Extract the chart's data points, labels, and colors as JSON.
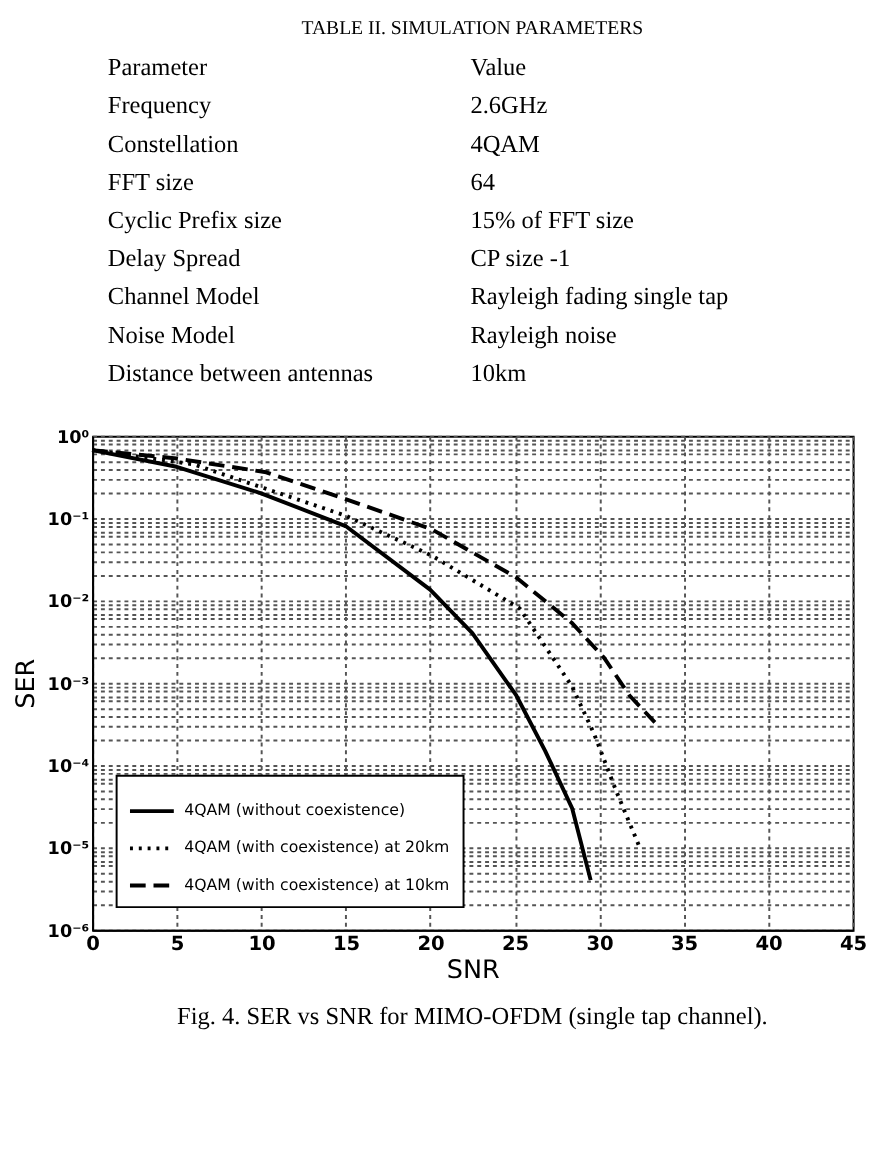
{
  "chart_data": [
    {
      "type": "other",
      "title": "TABLE II. SIMULATION PARAMETERS",
      "annotations": [
        "Parameter",
        "Value",
        "Frequency",
        "2.6GHz",
        "Constellation",
        "4QAM",
        "FFT size",
        "64",
        "Cyclic Prefix size",
        "15% of FFT size",
        "Delay Spread",
        "CP size -1",
        "Channel Model",
        "Rayleigh fading single tap",
        "Noise Model",
        "Rayleigh noise",
        "Distance between antennas",
        "10km"
      ]
    },
    {
      "type": "line",
      "xlabel": "SNR",
      "ylabel": "SER",
      "log": "y",
      "grid": true,
      "legend": "bottom left",
      "marker": "none",
      "xlim": [
        0,
        45
      ],
      "xticks": [
        0,
        5,
        10,
        15,
        20,
        25,
        30,
        35,
        40,
        45
      ],
      "ylim": [
        1e-06,
        1
      ],
      "yticks": [
        {
          "value": 1e-06,
          "label": "10⁻⁶"
        },
        {
          "value": 2e-06,
          "label": null
        },
        {
          "value": 3e-06,
          "label": null
        },
        {
          "value": 4e-06,
          "label": null
        },
        {
          "value": 5e-06,
          "label": null
        },
        {
          "value": 6e-06,
          "label": null
        },
        {
          "value": 7e-06,
          "label": null
        },
        {
          "value": 8e-06,
          "label": null
        },
        {
          "value": 9e-06,
          "label": null
        },
        {
          "value": 1e-05,
          "label": "10⁻⁵"
        },
        {
          "value": 2e-05,
          "label": null
        },
        {
          "value": 3e-05,
          "label": null
        },
        {
          "value": 4e-05,
          "label": null
        },
        {
          "value": 5e-05,
          "label": null
        },
        {
          "value": 6e-05,
          "label": null
        },
        {
          "value": 7e-05,
          "label": null
        },
        {
          "value": 8e-05,
          "label": null
        },
        {
          "value": 9e-05,
          "label": null
        },
        {
          "value": 0.0001,
          "label": "10⁻⁴"
        },
        {
          "value": 0.0002,
          "label": null
        },
        {
          "value": 0.0003,
          "label": null
        },
        {
          "value": 0.0004,
          "label": null
        },
        {
          "value": 0.0005,
          "label": null
        },
        {
          "value": 0.0006,
          "label": null
        },
        {
          "value": 0.0007,
          "label": null
        },
        {
          "value": 0.0008,
          "label": null
        },
        {
          "value": 0.0009,
          "label": null
        },
        {
          "value": 0.001,
          "label": "10⁻³"
        },
        {
          "value": 0.002,
          "label": null
        },
        {
          "value": 0.003,
          "label": null
        },
        {
          "value": 0.004,
          "label": null
        },
        {
          "value": 0.005,
          "label": null
        },
        {
          "value": 0.006,
          "label": null
        },
        {
          "value": 0.007,
          "label": null
        },
        {
          "value": 0.008,
          "label": null
        },
        {
          "value": 0.009,
          "label": null
        },
        {
          "value": 0.01,
          "label": "10⁻²"
        },
        {
          "value": 0.02,
          "label": null
        },
        {
          "value": 0.03,
          "label": null
        },
        {
          "value": 0.04,
          "label": null
        },
        {
          "value": 0.05,
          "label": null
        },
        {
          "value": 0.06,
          "label": null
        },
        {
          "value": 0.07,
          "label": null
        },
        {
          "value": 0.08,
          "label": null
        },
        {
          "value": 0.09,
          "label": null
        },
        {
          "value": 0.1,
          "label": "10⁻¹"
        },
        {
          "value": 0.2,
          "label": null
        },
        {
          "value": 0.3,
          "label": null
        },
        {
          "value": 0.4,
          "label": null
        },
        {
          "value": 0.5,
          "label": null
        },
        {
          "value": 0.6,
          "label": null
        },
        {
          "value": 0.7,
          "label": null
        },
        {
          "value": 0.8,
          "label": null
        },
        {
          "value": 0.9,
          "label": null
        },
        {
          "value": 1,
          "label": "10⁰"
        }
      ],
      "annotations": [
        "Fig. 4. SER vs SNR for MIMO-OFDM (single tap channel)."
      ],
      "series": [
        {
          "name": "4QAM (without coexistence)",
          "color": "#000000",
          "line_style": "solid",
          "x": [
            0,
            5,
            10,
            15,
            20,
            22.5,
            25.1,
            26.8,
            28.4,
            29.5
          ],
          "values": [
            0.67,
            0.42,
            0.2,
            0.08,
            0.0135,
            0.004,
            0.0007,
            0.00015,
            3e-05,
            4e-06
          ]
        },
        {
          "name": "4QAM (with coexistence) at 20km",
          "color": "#000000",
          "line_style": "dotted",
          "x": [
            0,
            6,
            15,
            20.1,
            25.3,
            28.4,
            29.7,
            31,
            32.4
          ],
          "values": [
            0.67,
            0.45,
            0.107,
            0.035,
            0.008,
            0.0009,
            0.00024,
            4.9e-05,
            1e-05
          ]
        },
        {
          "name": "4QAM (with coexistence) at 10km",
          "color": "#000000",
          "line_style": "dashed",
          "x": [
            0,
            5,
            10.3,
            15,
            20.1,
            25.1,
            28.4,
            30.3,
            31.8,
            33.3
          ],
          "values": [
            0.67,
            0.53,
            0.36,
            0.17,
            0.073,
            0.019,
            0.0053,
            0.002,
            0.0007,
            0.00033
          ]
        }
      ]
    }
  ]
}
